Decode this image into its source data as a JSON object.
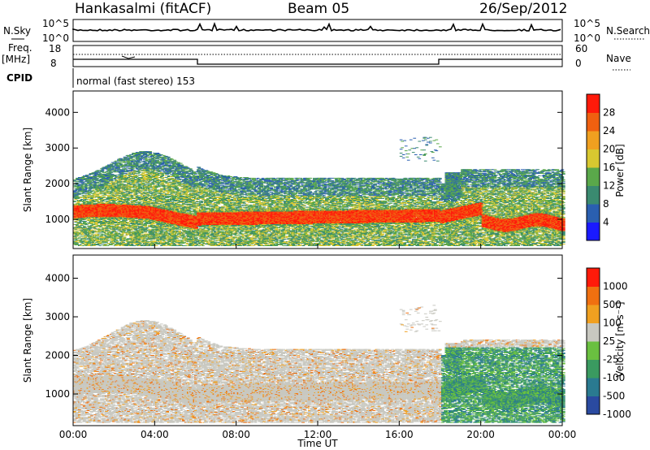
{
  "header": {
    "title": "Hankasalmi (fitACF)",
    "beam": "Beam 05",
    "date": "26/Sep/2012"
  },
  "sky_panel": {
    "left_label": "N.Sky",
    "right_label": "N.Search",
    "y_ticks_left": [
      "10^5",
      "10^0"
    ],
    "y_ticks_right": [
      "10^5",
      "10^0"
    ]
  },
  "freq_panel": {
    "left_label_top": "Freq.",
    "left_label_unit": "[MHz]",
    "right_label": "Nave",
    "y_ticks_left": [
      "18",
      "8"
    ],
    "y_ticks_right": [
      "60",
      "0"
    ]
  },
  "cpid": {
    "label": "CPID",
    "mode_text": "normal (fast stereo) 153"
  },
  "chart_data": [
    {
      "type": "heatmap",
      "variable": "Power",
      "ylabel": "Slant Range [km]",
      "ylim": [
        180,
        4600
      ],
      "y_ticks": [
        "1000",
        "2000",
        "3000",
        "4000"
      ],
      "colorbar_label": "Power [dB]",
      "colorbar_ticks": [
        "4",
        "8",
        "12",
        "16",
        "20",
        "24",
        "28"
      ],
      "colorbar_colors": [
        "#1a1aff",
        "#2a5fb0",
        "#3a8a70",
        "#5aa84a",
        "#d8c830",
        "#f0a020",
        "#f06010",
        "#ff1a0a"
      ]
    },
    {
      "type": "heatmap",
      "variable": "Velocity",
      "ylabel": "Slant Range [km]",
      "ylim": [
        180,
        4600
      ],
      "y_ticks": [
        "1000",
        "2000",
        "3000",
        "4000"
      ],
      "colorbar_label": "Velocity [m s⁻¹]",
      "colorbar_ticks": [
        "1000",
        "500",
        "100",
        "25",
        "-25",
        "-100",
        "-500",
        "-1000"
      ],
      "colorbar_colors": [
        "#2a4aa0",
        "#2a7a90",
        "#3a9a60",
        "#6ac040",
        "#c8c8c0",
        "#f0a020",
        "#f07010",
        "#ff1a0a"
      ]
    }
  ],
  "x_axis": {
    "label": "Time UT",
    "ticks": [
      "00:00",
      "04:00",
      "08:00",
      "12:00",
      "16:00",
      "20:00",
      "00:00"
    ]
  }
}
